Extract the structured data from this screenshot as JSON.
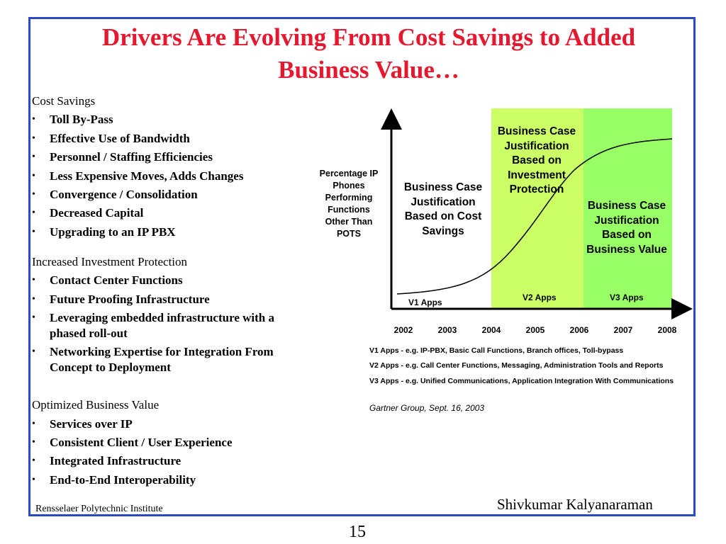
{
  "slide": {
    "title_line1": "Drivers Are Evolving From Cost Savings to Added",
    "title_line2": "Business Value…",
    "author": "Shivkumar Kalyanaraman",
    "institution": "Rensselaer Polytechnic Institute",
    "page_number": "15",
    "frame_color": "#2a49c7",
    "title_color": "#e4182e"
  },
  "sections": [
    {
      "heading": "Cost Savings",
      "items": [
        "Toll By-Pass",
        "Effective Use of Bandwidth",
        "Personnel / Staffing Efficiencies",
        "Less Expensive Moves, Adds Changes",
        "Convergence / Consolidation",
        "Decreased Capital",
        "Upgrading to an IP PBX"
      ]
    },
    {
      "heading": "Increased Investment Protection",
      "items": [
        "Contact Center Functions",
        "Future Proofing Infrastructure",
        "Leveraging embedded infrastructure with a phased roll-out",
        "Networking Expertise for Integration From Concept to Deployment"
      ]
    },
    {
      "heading": "Optimized Business Value",
      "items": [
        "Services over IP",
        "Consistent Client / User Experience",
        "Integrated Infrastructure",
        "End-to-End Interoperability"
      ]
    }
  ],
  "figure": {
    "y_axis_label": "Percentage IP Phones Performing Functions Other Than POTS",
    "years": [
      "2002",
      "2003",
      "2004",
      "2005",
      "2006",
      "2007",
      "2008"
    ],
    "zone_cost_text": "Business Case Justification Based on Cost Savings",
    "zone_investment_text": "Business Case Justification Based on Investment Protection",
    "zone_value_text": "Business Case Justification Based on Business Value",
    "v1_label": "V1 Apps",
    "v2_label": "V2 Apps",
    "v3_label": "V3 Apps",
    "zone_investment_color": "#ccff66",
    "zone_value_color": "#99ff66",
    "notes": [
      "V1 Apps - e.g. IP-PBX, Basic Call Functions, Branch offices, Toll-bypass",
      "V2 Apps - e.g. Call Center Functions, Messaging, Administration Tools and Reports",
      "V3 Apps - e.g. Unified Communications, Application Integration With Communications"
    ],
    "source": "Gartner Group, Sept. 16, 2003"
  }
}
